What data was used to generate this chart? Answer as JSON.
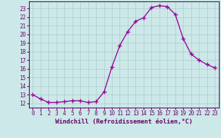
{
  "x_values": [
    0,
    1,
    2,
    3,
    4,
    5,
    6,
    7,
    8,
    9,
    10,
    11,
    12,
    13,
    14,
    15,
    16,
    17,
    18,
    19,
    20,
    21,
    22,
    23
  ],
  "y_values": [
    13.0,
    12.5,
    12.1,
    12.1,
    12.2,
    12.3,
    12.3,
    12.1,
    12.2,
    13.3,
    16.2,
    18.7,
    20.3,
    21.5,
    21.9,
    23.1,
    23.3,
    23.2,
    22.3,
    19.5,
    17.7,
    17.0,
    16.5,
    16.1
  ],
  "line_color": "#990099",
  "marker": "+",
  "marker_size": 4,
  "bg_color": "#cce8e8",
  "grid_color": "#aacccc",
  "xlabel": "Windchill (Refroidissement éolien,°C)",
  "xlim": [
    -0.5,
    23.5
  ],
  "ylim": [
    11.5,
    23.8
  ],
  "yticks": [
    12,
    13,
    14,
    15,
    16,
    17,
    18,
    19,
    20,
    21,
    22,
    23
  ],
  "xticks": [
    0,
    1,
    2,
    3,
    4,
    5,
    6,
    7,
    8,
    9,
    10,
    11,
    12,
    13,
    14,
    15,
    16,
    17,
    18,
    19,
    20,
    21,
    22,
    23
  ],
  "tick_color": "#660066",
  "label_color": "#660066",
  "xlabel_fontsize": 6.5,
  "tick_fontsize": 5.5,
  "line_width": 1.0,
  "marker_edge_width": 1.0
}
